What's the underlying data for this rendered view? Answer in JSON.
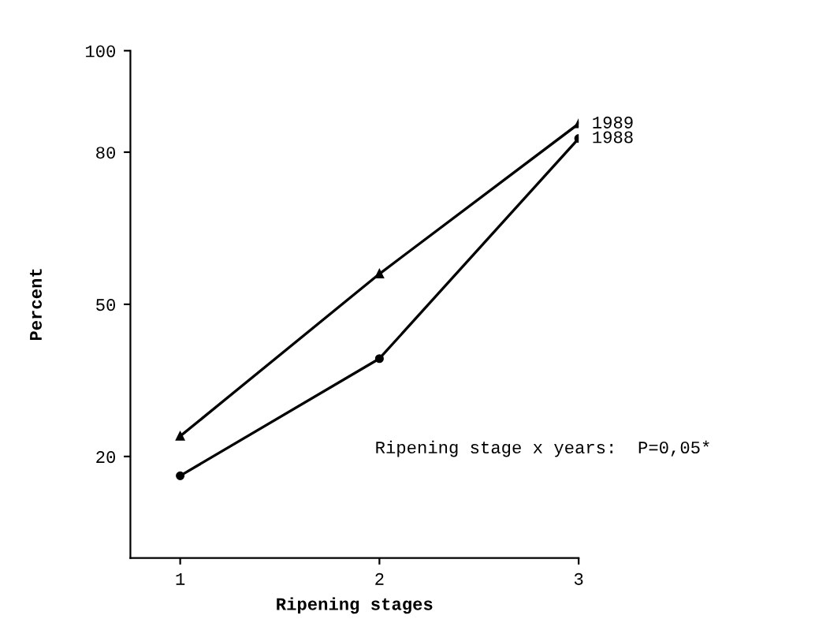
{
  "chart_data": {
    "type": "line",
    "xlabel": "Ripening stages",
    "ylabel": "Percent",
    "x": [
      1,
      2,
      3
    ],
    "xlim": [
      0.75,
      3
    ],
    "xticks": [
      1,
      2,
      3
    ],
    "ylim": [
      0,
      100
    ],
    "yticks": [
      20,
      50,
      80,
      100
    ],
    "series": [
      {
        "name": "1989",
        "color": "#000000",
        "values": [
          24,
          56,
          85.6
        ],
        "marker": "triangle"
      },
      {
        "name": "1988",
        "color": "#000000",
        "values": [
          16.2,
          39.3,
          82.7
        ],
        "marker": "circle"
      }
    ],
    "annotations": [
      "Ripening stage x years:  P=0,05*"
    ],
    "grid": false,
    "legend": false,
    "line_style": "solid"
  }
}
